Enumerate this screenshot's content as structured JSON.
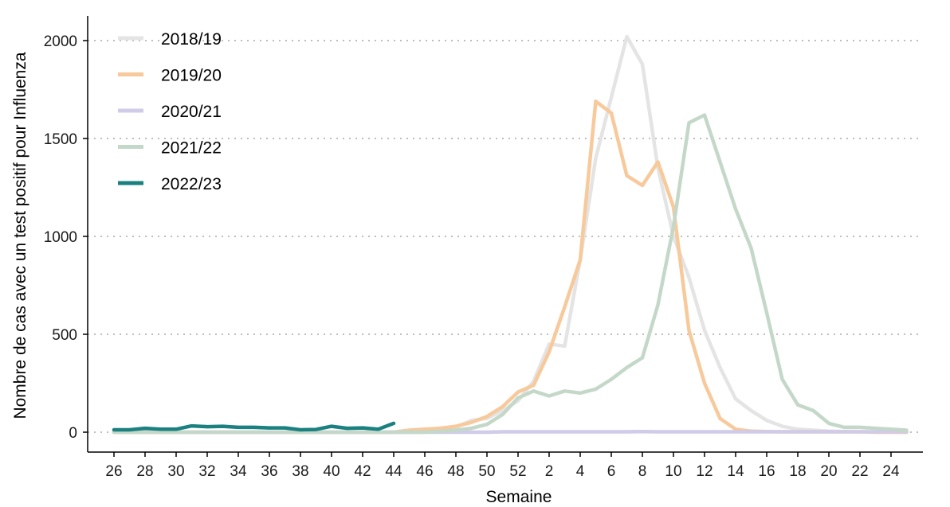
{
  "chart_data": {
    "type": "line",
    "title": "",
    "xlabel": "Semaine",
    "ylabel": "Nombre de cas avec un test positif pour Influenza",
    "ylim": [
      0,
      2000
    ],
    "yticks": [
      0,
      500,
      1000,
      1500,
      2000
    ],
    "xtick_labels": [
      "26",
      "28",
      "30",
      "32",
      "34",
      "36",
      "38",
      "40",
      "42",
      "44",
      "46",
      "48",
      "50",
      "52",
      "2",
      "4",
      "6",
      "8",
      "10",
      "12",
      "14",
      "16",
      "18",
      "20",
      "22",
      "24"
    ],
    "x_weeks": [
      26,
      27,
      28,
      29,
      30,
      31,
      32,
      33,
      34,
      35,
      36,
      37,
      38,
      39,
      40,
      41,
      42,
      43,
      44,
      45,
      46,
      47,
      48,
      49,
      50,
      51,
      52,
      1,
      2,
      3,
      4,
      5,
      6,
      7,
      8,
      9,
      10,
      11,
      12,
      13,
      14,
      15,
      16,
      17,
      18,
      19,
      20,
      21,
      22,
      23,
      24,
      25
    ],
    "grid": "horizontal-dotted",
    "legend_position": "top-left",
    "series": [
      {
        "name": "2018/19",
        "color": "#e4e4e4",
        "values": [
          0,
          0,
          0,
          0,
          0,
          0,
          0,
          0,
          0,
          0,
          0,
          0,
          0,
          0,
          0,
          0,
          0,
          0,
          0,
          5,
          10,
          15,
          25,
          60,
          70,
          110,
          160,
          260,
          450,
          440,
          880,
          1400,
          1710,
          2020,
          1880,
          1350,
          1000,
          790,
          520,
          330,
          170,
          110,
          60,
          30,
          15,
          10,
          5,
          3,
          2,
          1,
          1,
          0
        ]
      },
      {
        "name": "2019/20",
        "color": "#f7c99b",
        "values": [
          0,
          0,
          0,
          0,
          0,
          0,
          0,
          0,
          0,
          0,
          0,
          0,
          0,
          0,
          0,
          0,
          0,
          0,
          0,
          10,
          15,
          20,
          30,
          50,
          80,
          130,
          205,
          240,
          410,
          640,
          880,
          1690,
          1630,
          1310,
          1260,
          1380,
          1150,
          520,
          250,
          70,
          15,
          5,
          3,
          2,
          2,
          2,
          2,
          2,
          2,
          0,
          0,
          0
        ]
      },
      {
        "name": "2020/21",
        "color": "#cfcbe8",
        "values": [
          0,
          0,
          0,
          0,
          0,
          0,
          0,
          0,
          0,
          0,
          0,
          0,
          0,
          0,
          0,
          0,
          0,
          0,
          0,
          0,
          0,
          0,
          0,
          0,
          0,
          2,
          2,
          2,
          2,
          2,
          2,
          2,
          2,
          2,
          3,
          2,
          2,
          2,
          2,
          2,
          2,
          2,
          2,
          2,
          2,
          2,
          2,
          2,
          2,
          2,
          2,
          2
        ]
      },
      {
        "name": "2021/22",
        "color": "#c4d8c9",
        "values": [
          0,
          0,
          0,
          0,
          0,
          0,
          0,
          0,
          0,
          0,
          0,
          0,
          0,
          0,
          0,
          0,
          0,
          0,
          0,
          0,
          0,
          5,
          10,
          20,
          40,
          90,
          175,
          210,
          185,
          210,
          200,
          220,
          270,
          330,
          380,
          650,
          1050,
          1580,
          1620,
          1380,
          1140,
          940,
          610,
          270,
          140,
          110,
          45,
          25,
          25,
          20,
          15,
          10
        ]
      },
      {
        "name": "2022/23",
        "color": "#1b8080",
        "values": [
          12,
          12,
          20,
          15,
          15,
          32,
          28,
          30,
          25,
          25,
          22,
          22,
          12,
          14,
          30,
          20,
          22,
          15,
          45
        ]
      }
    ]
  }
}
